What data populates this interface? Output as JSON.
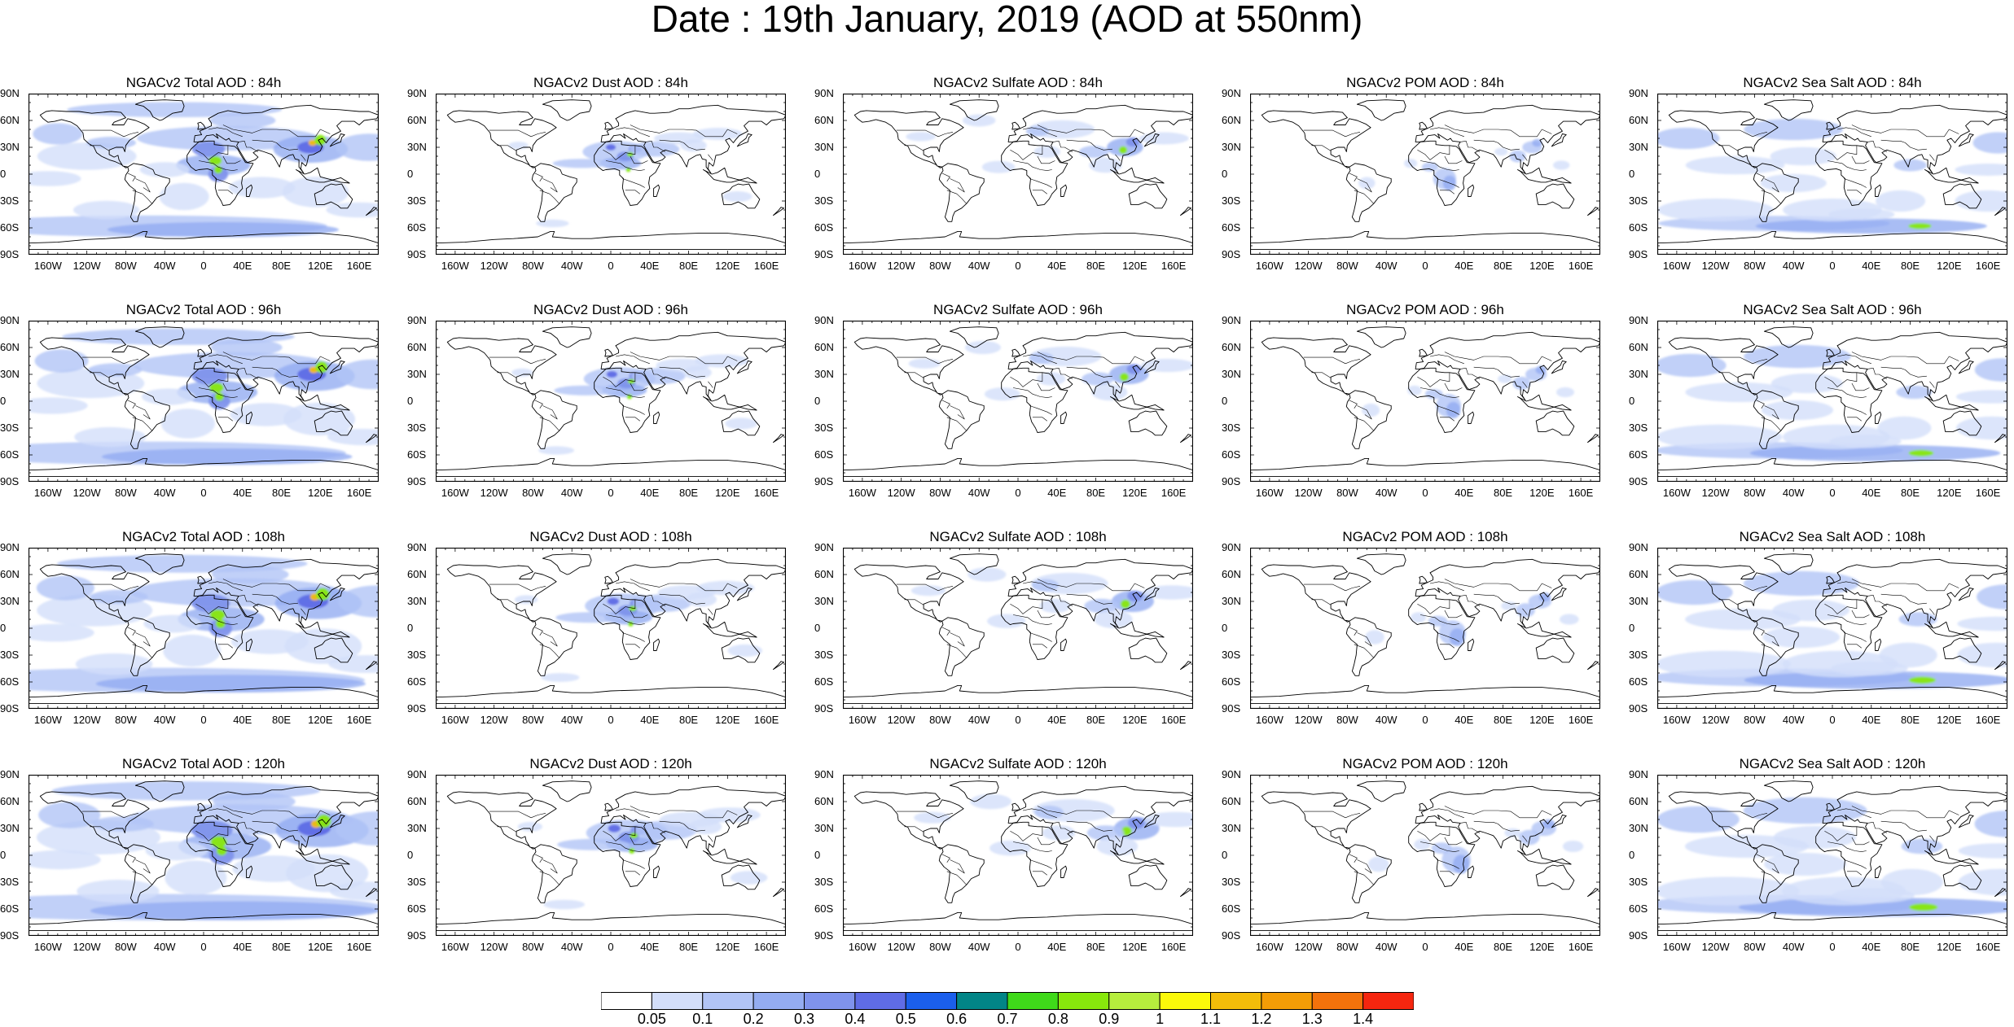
{
  "title": "Date : 19th January, 2019 (AOD at 550nm)",
  "columns": [
    {
      "species": "total",
      "titles": [
        "NGACv2 Total AOD : 84h",
        "NGACv2 Total AOD : 96h",
        "NGACv2 Total AOD : 108h",
        "NGACv2 Total AOD : 120h"
      ]
    },
    {
      "species": "dust",
      "titles": [
        "NGACv2 Dust AOD : 84h",
        "NGACv2 Dust AOD : 96h",
        "NGACv2 Dust AOD : 108h",
        "NGACv2 Dust AOD : 120h"
      ]
    },
    {
      "species": "sulfate",
      "titles": [
        "NGACv2 Sulfate AOD : 84h",
        "NGACv2 Sulfate AOD : 96h",
        "NGACv2 Sulfate AOD : 108h",
        "NGACv2 Sulfate AOD : 120h"
      ]
    },
    {
      "species": "pom",
      "titles": [
        "NGACv2 POM AOD : 84h",
        "NGACv2 POM AOD : 96h",
        "NGACv2 POM AOD : 108h",
        "NGACv2 POM AOD : 120h"
      ]
    },
    {
      "species": "seasalt",
      "titles": [
        "NGACv2 Sea Salt AOD : 84h",
        "NGACv2 Sea Salt AOD : 96h",
        "NGACv2 Sea Salt AOD : 108h",
        "NGACv2 Sea Salt  AOD : 120h"
      ]
    }
  ],
  "lat_ticks": [
    "90N",
    "60N",
    "30N",
    "0",
    "30S",
    "60S",
    "90S"
  ],
  "lon_ticks": [
    "160W",
    "120W",
    "80W",
    "40W",
    "0",
    "40E",
    "80E",
    "120E",
    "160E"
  ],
  "colorbar": {
    "labels": [
      "0.05",
      "0.1",
      "0.2",
      "0.3",
      "0.4",
      "0.5",
      "0.6",
      "0.7",
      "0.8",
      "0.9",
      "1",
      "1.1",
      "1.2",
      "1.3",
      "1.4"
    ],
    "colors": [
      "#ffffff",
      "#d3defa",
      "#b2c4f6",
      "#94acf1",
      "#7f93ec",
      "#5f6ce6",
      "#1b5fec",
      "#028587",
      "#3fd91a",
      "#88e80c",
      "#b6ee3d",
      "#fbf90a",
      "#f3bd09",
      "#f49d06",
      "#f3720b",
      "#f5260f"
    ]
  }
}
